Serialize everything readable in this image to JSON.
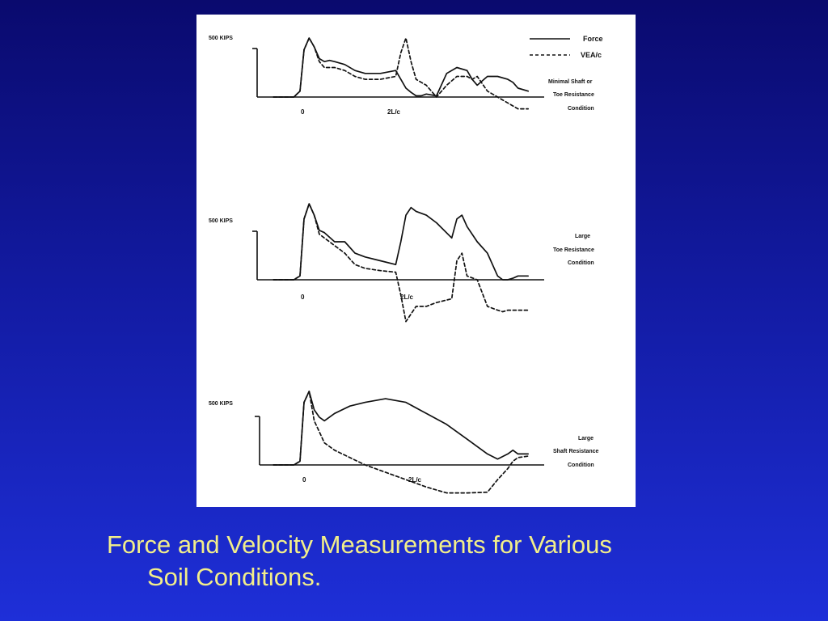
{
  "caption": {
    "line1": "Force and Velocity Measurements for Various",
    "line2": "Soil Conditions."
  },
  "legend": {
    "force_label": "Force",
    "velocity_label": "VEA/c"
  },
  "chart_data": [
    {
      "type": "line",
      "scale_label": "500 KIPS",
      "condition": [
        "Minimal Shaft or",
        "Toe Resistance",
        "Condition"
      ],
      "tick_labels": [
        "0",
        "2L/c"
      ],
      "x": [
        -0.3,
        -0.2,
        -0.1,
        -0.04,
        0,
        0.05,
        0.1,
        0.15,
        0.2,
        0.25,
        0.3,
        0.4,
        0.5,
        0.6,
        0.75,
        0.9,
        0.95,
        1.0,
        1.05,
        1.1,
        1.15,
        1.2,
        1.3,
        1.4,
        1.5,
        1.6,
        1.65,
        1.7,
        1.8,
        1.9,
        2.0,
        2.05,
        2.1,
        2.2
      ],
      "series": [
        {
          "name": "Force",
          "values": [
            0,
            0,
            0,
            0.1,
            0.8,
            1.0,
            0.85,
            0.65,
            0.6,
            0.62,
            0.6,
            0.55,
            0.45,
            0.4,
            0.4,
            0.45,
            0.3,
            0.15,
            0.08,
            0.02,
            0.02,
            0.05,
            0.02,
            0.4,
            0.5,
            0.45,
            0.3,
            0.2,
            0.35,
            0.35,
            0.3,
            0.25,
            0.15,
            0.1
          ]
        },
        {
          "name": "VEA/c",
          "values": [
            0,
            0,
            0,
            0.1,
            0.8,
            1.0,
            0.85,
            0.6,
            0.5,
            0.5,
            0.5,
            0.45,
            0.35,
            0.3,
            0.3,
            0.35,
            0.75,
            1.0,
            0.6,
            0.3,
            0.25,
            0.2,
            0.0,
            0.2,
            0.35,
            0.35,
            0.3,
            0.35,
            0.1,
            0.0,
            -0.1,
            -0.15,
            -0.2,
            -0.2
          ]
        }
      ]
    },
    {
      "type": "line",
      "scale_label": "500 KIPS",
      "condition": [
        "Large",
        "Toe Resistance",
        "Condition"
      ],
      "tick_labels": [
        "0",
        "2L/c"
      ],
      "x": [
        -0.3,
        -0.2,
        -0.1,
        -0.04,
        0,
        0.05,
        0.1,
        0.15,
        0.2,
        0.3,
        0.4,
        0.5,
        0.6,
        0.75,
        0.9,
        0.95,
        1.0,
        1.05,
        1.1,
        1.2,
        1.3,
        1.45,
        1.5,
        1.55,
        1.6,
        1.7,
        1.8,
        1.9,
        1.95,
        2.0,
        2.05,
        2.1,
        2.2
      ],
      "series": [
        {
          "name": "Force",
          "values": [
            0,
            0,
            0,
            0.05,
            0.8,
            1.0,
            0.85,
            0.65,
            0.62,
            0.5,
            0.5,
            0.35,
            0.3,
            0.25,
            0.2,
            0.5,
            0.85,
            0.95,
            0.9,
            0.85,
            0.75,
            0.55,
            0.8,
            0.85,
            0.7,
            0.5,
            0.35,
            0.05,
            0.0,
            0.0,
            0.02,
            0.05,
            0.05
          ]
        },
        {
          "name": "VEA/c",
          "values": [
            0,
            0,
            0,
            0.05,
            0.8,
            1.0,
            0.85,
            0.6,
            0.55,
            0.45,
            0.35,
            0.2,
            0.15,
            0.12,
            0.1,
            -0.2,
            -0.55,
            -0.45,
            -0.35,
            -0.35,
            -0.3,
            -0.25,
            0.25,
            0.35,
            0.05,
            0.0,
            -0.35,
            -0.4,
            -0.42,
            -0.4,
            -0.4,
            -0.4,
            -0.4
          ]
        }
      ]
    },
    {
      "type": "line",
      "scale_label": "500 KIPS",
      "condition": [
        "Large",
        "Shaft Resistance",
        "Condition"
      ],
      "tick_labels": [
        "0",
        "2L/c"
      ],
      "x": [
        -0.3,
        -0.2,
        -0.1,
        -0.04,
        0,
        0.05,
        0.1,
        0.15,
        0.2,
        0.3,
        0.45,
        0.6,
        0.8,
        1.0,
        1.2,
        1.4,
        1.6,
        1.8,
        1.9,
        2.0,
        2.05,
        2.1,
        2.2
      ],
      "series": [
        {
          "name": "Force",
          "values": [
            0,
            0,
            0,
            0.05,
            0.85,
            1.0,
            0.75,
            0.65,
            0.6,
            0.7,
            0.8,
            0.85,
            0.9,
            0.85,
            0.7,
            0.55,
            0.35,
            0.15,
            0.08,
            0.15,
            0.2,
            0.15,
            0.15
          ]
        },
        {
          "name": "VEA/c",
          "values": [
            0,
            0,
            0,
            0.05,
            0.85,
            1.0,
            0.6,
            0.45,
            0.3,
            0.2,
            0.1,
            0.0,
            -0.1,
            -0.2,
            -0.3,
            -0.38,
            -0.38,
            -0.37,
            -0.2,
            -0.05,
            0.05,
            0.1,
            0.12
          ]
        }
      ]
    }
  ]
}
